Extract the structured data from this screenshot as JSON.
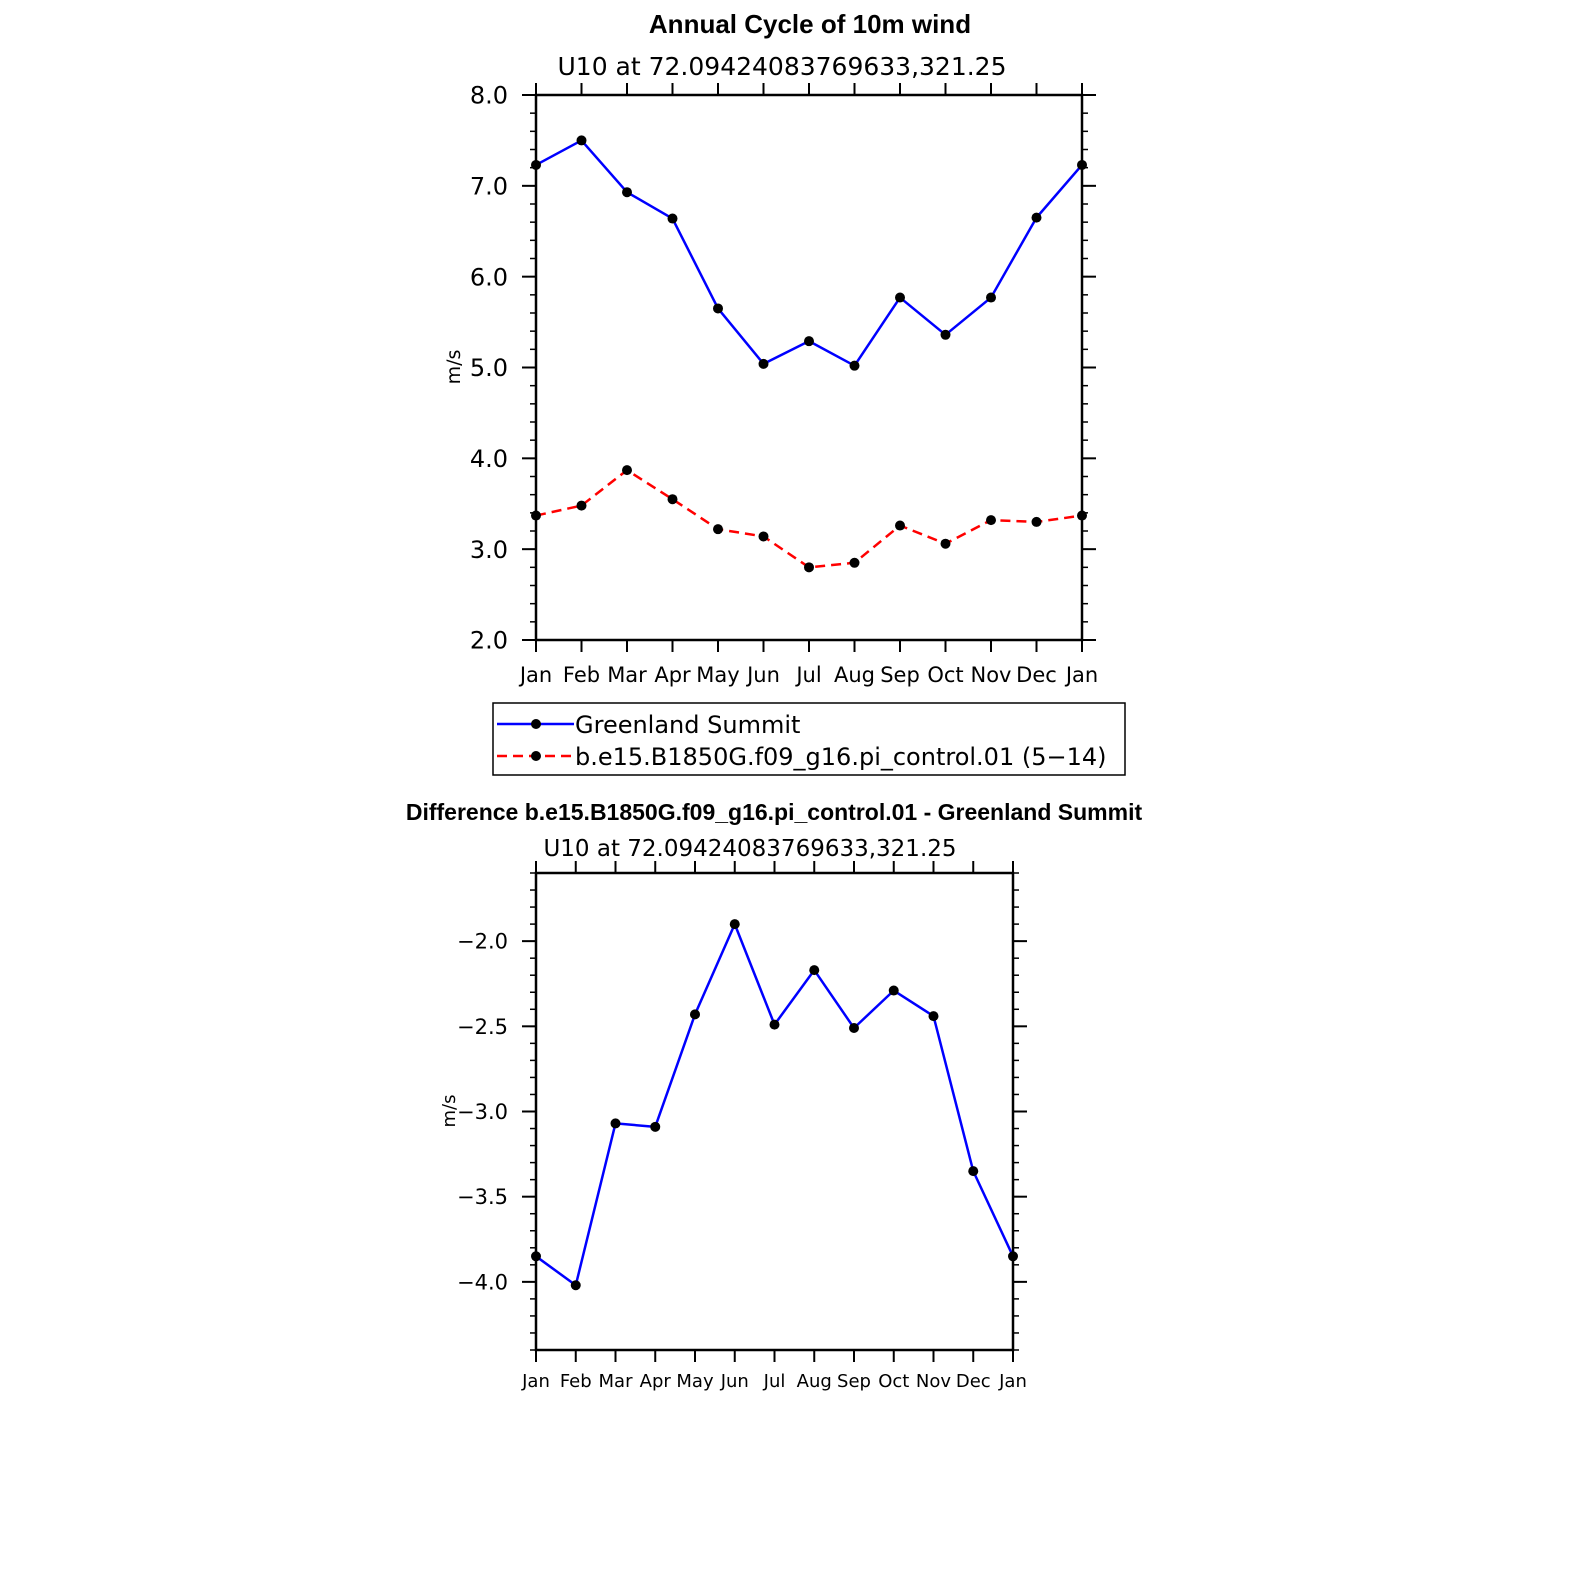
{
  "chart_data": [
    {
      "type": "line",
      "title": "Annual Cycle of 10m wind",
      "subtitle": "U10  at  72.09424083769633,321.25",
      "xlabel": "",
      "ylabel": "m/s",
      "categories": [
        "Jan",
        "Feb",
        "Mar",
        "Apr",
        "May",
        "Jun",
        "Jul",
        "Aug",
        "Sep",
        "Oct",
        "Nov",
        "Dec",
        "Jan"
      ],
      "ylim": [
        2.0,
        8.0
      ],
      "yticks": [
        "2.0",
        "3.0",
        "4.0",
        "5.0",
        "6.0",
        "7.0",
        "8.0"
      ],
      "series": [
        {
          "name": "Greenland Summit",
          "color": "#0000ff",
          "style": "solid",
          "values": [
            7.23,
            7.5,
            6.93,
            6.64,
            5.65,
            5.04,
            5.29,
            5.02,
            5.77,
            5.36,
            5.77,
            6.65,
            7.23
          ]
        },
        {
          "name": "b.e15.B1850G.f09_g16.pi_control.01 (5−14)",
          "color": "#ff0000",
          "style": "dashed",
          "values": [
            3.37,
            3.48,
            3.87,
            3.55,
            3.22,
            3.14,
            2.8,
            2.85,
            3.26,
            3.06,
            3.32,
            3.3,
            3.37
          ]
        }
      ],
      "legend": "below"
    },
    {
      "type": "line",
      "title": "Difference b.e15.B1850G.f09_g16.pi_control.01 - Greenland Summit",
      "subtitle": "U10  at  72.09424083769633,321.25",
      "xlabel": "",
      "ylabel": "m/s",
      "categories": [
        "Jan",
        "Feb",
        "Mar",
        "Apr",
        "May",
        "Jun",
        "Jul",
        "Aug",
        "Sep",
        "Oct",
        "Nov",
        "Dec",
        "Jan"
      ],
      "ylim": [
        -4.4,
        -1.6
      ],
      "yticks": [
        "-4.0",
        "-3.5",
        "-3.0",
        "-2.5",
        "-2.0"
      ],
      "series": [
        {
          "name": "Difference",
          "color": "#0000ff",
          "style": "solid",
          "values": [
            -3.85,
            -4.02,
            -3.07,
            -3.09,
            -2.43,
            -1.9,
            -2.49,
            -2.17,
            -2.51,
            -2.29,
            -2.44,
            -3.35,
            -3.85
          ]
        }
      ]
    }
  ]
}
